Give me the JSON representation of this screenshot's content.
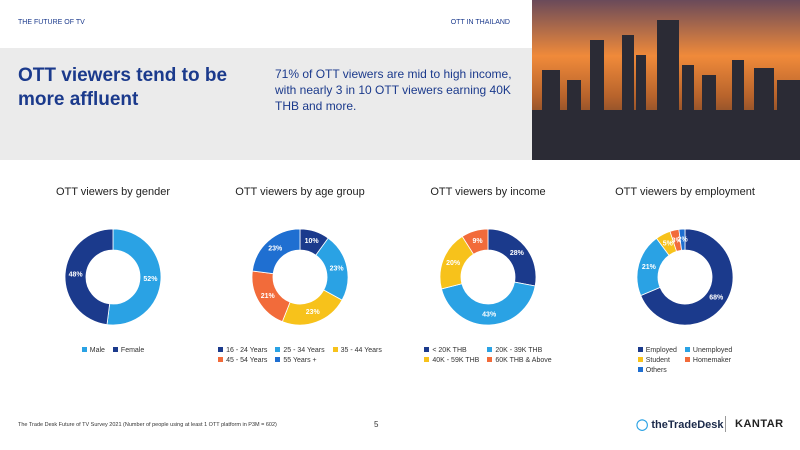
{
  "header": {
    "section": "THE FUTURE OF TV",
    "topic": "OTT IN THAILAND",
    "headline": "OTT viewers tend to be more affluent",
    "summary": "71% of OTT viewers are mid to high income, with nearly 3 in 10 OTT viewers earning 40K THB and more."
  },
  "chart_data": [
    {
      "type": "donut",
      "title": "OTT viewers by gender",
      "categories": [
        "Male",
        "Female"
      ],
      "values": [
        52,
        48
      ],
      "value_labels": [
        "52%",
        "48%"
      ],
      "colors": [
        "#2aa2e4",
        "#1b3a8c"
      ]
    },
    {
      "type": "donut",
      "title": "OTT viewers by age group",
      "categories": [
        "16 - 24 Years",
        "25 - 34 Years",
        "35 - 44 Years",
        "45 - 54 Years",
        "55 Years +"
      ],
      "values": [
        10,
        23,
        23,
        21,
        23
      ],
      "value_labels": [
        "10%",
        "23%",
        "23%",
        "21%",
        "23%"
      ],
      "colors": [
        "#1b3a8c",
        "#2aa2e4",
        "#f7c21b",
        "#f26b3a",
        "#1f6fd1"
      ]
    },
    {
      "type": "donut",
      "title": "OTT viewers by income",
      "categories": [
        "< 20K THB",
        "20K - 39K THB",
        "40K - 59K THB",
        "60K THB & Above"
      ],
      "values": [
        28,
        43,
        20,
        9
      ],
      "value_labels": [
        "28%",
        "43%",
        "20%",
        "9%"
      ],
      "colors": [
        "#1b3a8c",
        "#2aa2e4",
        "#f7c21b",
        "#f26b3a"
      ]
    },
    {
      "type": "donut",
      "title": "OTT viewers by employment",
      "categories": [
        "Employed",
        "Unemployed",
        "Student",
        "Homemaker",
        "Others"
      ],
      "values": [
        68,
        21,
        5,
        3,
        2
      ],
      "value_labels": [
        "68%",
        "21%",
        "5%",
        "3%",
        "2%"
      ],
      "colors": [
        "#1b3a8c",
        "#2aa2e4",
        "#f7c21b",
        "#f26b3a",
        "#1f6fd1"
      ]
    }
  ],
  "footer": {
    "source": "The Trade Desk Future of TV Survey 2021 (Number of people using at least 1 OTT platform in P3M = 602)",
    "page": "5",
    "logo_left": "theTradeDesk",
    "logo_right": "KANTAR"
  }
}
